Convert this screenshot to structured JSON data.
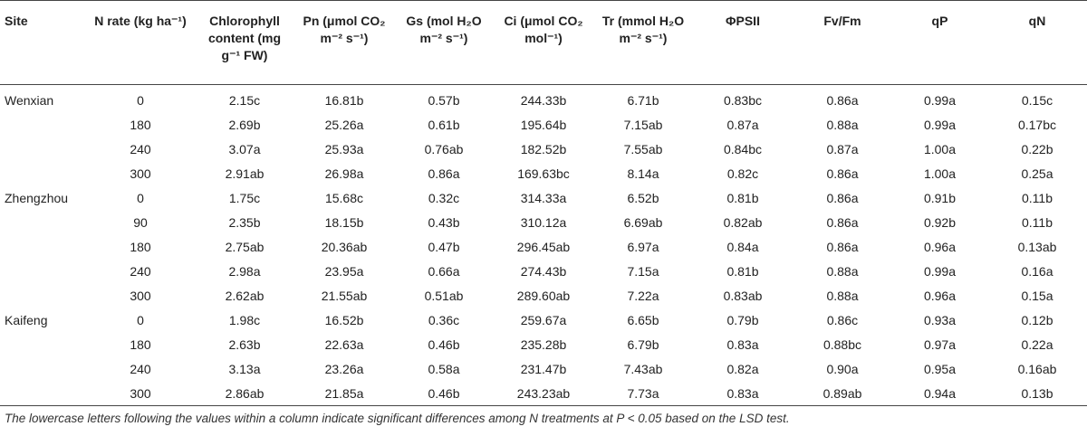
{
  "table": {
    "columns": [
      "Site",
      "N rate (kg ha⁻¹)",
      "Chlorophyll content (mg g⁻¹ FW)",
      "Pn (μmol CO₂ m⁻² s⁻¹)",
      "Gs (mol H₂O m⁻² s⁻¹)",
      "Ci (μmol CO₂ mol⁻¹)",
      "Tr (mmol H₂O m⁻² s⁻¹)",
      "ΦPSII",
      "Fv/Fm",
      "qP",
      "qN"
    ],
    "rows": [
      [
        "Wenxian",
        "0",
        "2.15c",
        "16.81b",
        "0.57b",
        "244.33b",
        "6.71b",
        "0.83bc",
        "0.86a",
        "0.99a",
        "0.15c"
      ],
      [
        "",
        "180",
        "2.69b",
        "25.26a",
        "0.61b",
        "195.64b",
        "7.15ab",
        "0.87a",
        "0.88a",
        "0.99a",
        "0.17bc"
      ],
      [
        "",
        "240",
        "3.07a",
        "25.93a",
        "0.76ab",
        "182.52b",
        "7.55ab",
        "0.84bc",
        "0.87a",
        "1.00a",
        "0.22b"
      ],
      [
        "",
        "300",
        "2.91ab",
        "26.98a",
        "0.86a",
        "169.63bc",
        "8.14a",
        "0.82c",
        "0.86a",
        "1.00a",
        "0.25a"
      ],
      [
        "Zhengzhou",
        "0",
        "1.75c",
        "15.68c",
        "0.32c",
        "314.33a",
        "6.52b",
        "0.81b",
        "0.86a",
        "0.91b",
        "0.11b"
      ],
      [
        "",
        "90",
        "2.35b",
        "18.15b",
        "0.43b",
        "310.12a",
        "6.69ab",
        "0.82ab",
        "0.86a",
        "0.92b",
        "0.11b"
      ],
      [
        "",
        "180",
        "2.75ab",
        "20.36ab",
        "0.47b",
        "296.45ab",
        "6.97a",
        "0.84a",
        "0.86a",
        "0.96a",
        "0.13ab"
      ],
      [
        "",
        "240",
        "2.98a",
        "23.95a",
        "0.66a",
        "274.43b",
        "7.15a",
        "0.81b",
        "0.88a",
        "0.99a",
        "0.16a"
      ],
      [
        "",
        "300",
        "2.62ab",
        "21.55ab",
        "0.51ab",
        "289.60ab",
        "7.22a",
        "0.83ab",
        "0.88a",
        "0.96a",
        "0.15a"
      ],
      [
        "Kaifeng",
        "0",
        "1.98c",
        "16.52b",
        "0.36c",
        "259.67a",
        "6.65b",
        "0.79b",
        "0.86c",
        "0.93a",
        "0.12b"
      ],
      [
        "",
        "180",
        "2.63b",
        "22.63a",
        "0.46b",
        "235.28b",
        "6.79b",
        "0.83a",
        "0.88bc",
        "0.97a",
        "0.22a"
      ],
      [
        "",
        "240",
        "3.13a",
        "23.26a",
        "0.58a",
        "231.47b",
        "7.43ab",
        "0.82a",
        "0.90a",
        "0.95a",
        "0.16ab"
      ],
      [
        "",
        "300",
        "2.86ab",
        "21.85a",
        "0.46b",
        "243.23ab",
        "7.73a",
        "0.83a",
        "0.89ab",
        "0.94a",
        "0.13b"
      ]
    ]
  },
  "footnote": "The lowercase letters following the values within a column indicate significant differences among N treatments at P < 0.05 based on the LSD test."
}
